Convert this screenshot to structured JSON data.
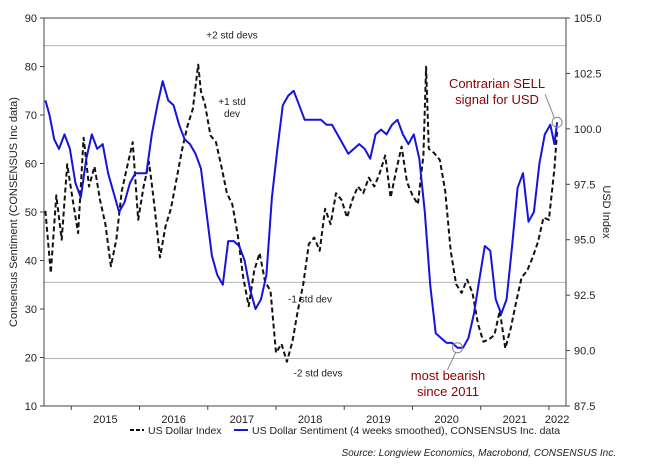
{
  "chart_data": {
    "type": "line",
    "x_tick_labels": [
      "2015",
      "2016",
      "2017",
      "2018",
      "2019",
      "2020",
      "2021",
      "2022"
    ],
    "x_range": [
      2014.6,
      2022.25
    ],
    "left_axis": {
      "label": "Consensus Sentiment (CONSENSUS Inc data)",
      "range": [
        10,
        90
      ],
      "ticks": [
        10,
        20,
        30,
        40,
        50,
        60,
        70,
        80,
        90
      ]
    },
    "right_axis": {
      "label": "USD Index",
      "range": [
        87.5,
        105.0
      ],
      "ticks": [
        "87.5",
        "90.0",
        "92.5",
        "95.0",
        "97.5",
        "100.0",
        "102.5",
        "105.0"
      ]
    },
    "reference_lines": [
      {
        "label": "+2 std devs",
        "value": 84.3
      },
      {
        "label": "-1 std dev",
        "value": 35.5
      },
      {
        "label": "-2 std devs",
        "value": 19.8
      }
    ],
    "inline_labels": [
      {
        "text": "+1 std",
        "text2": "dev"
      }
    ],
    "annotations": [
      {
        "text": "Contrarian SELL",
        "text2": "signal for USD",
        "color": "#8b0000"
      },
      {
        "text": "most bearish",
        "text2": "since 2011",
        "color": "#8b0000"
      }
    ],
    "series": [
      {
        "name": "US Dollar Index",
        "axis": "right",
        "color": "#111111",
        "style": "dashed",
        "x": [
          2014.62,
          2014.7,
          2014.78,
          2014.86,
          2014.94,
          2015.02,
          2015.1,
          2015.18,
          2015.26,
          2015.34,
          2015.42,
          2015.5,
          2015.58,
          2015.66,
          2015.74,
          2015.82,
          2015.9,
          2015.98,
          2016.06,
          2016.14,
          2016.22,
          2016.3,
          2016.38,
          2016.46,
          2016.54,
          2016.62,
          2016.7,
          2016.78,
          2016.86,
          2016.9,
          2016.96,
          2017.04,
          2017.12,
          2017.2,
          2017.28,
          2017.36,
          2017.44,
          2017.52,
          2017.6,
          2017.68,
          2017.76,
          2017.84,
          2017.92,
          2018.0,
          2018.08,
          2018.16,
          2018.24,
          2018.32,
          2018.4,
          2018.48,
          2018.56,
          2018.64,
          2018.72,
          2018.8,
          2018.88,
          2018.96,
          2019.04,
          2019.12,
          2019.2,
          2019.28,
          2019.36,
          2019.44,
          2019.52,
          2019.6,
          2019.68,
          2019.76,
          2019.84,
          2019.92,
          2020.0,
          2020.08,
          2020.16,
          2020.2,
          2020.24,
          2020.32,
          2020.4,
          2020.48,
          2020.56,
          2020.64,
          2020.72,
          2020.8,
          2020.88,
          2020.96,
          2021.04,
          2021.12,
          2021.2,
          2021.28,
          2021.36,
          2021.44,
          2021.52,
          2021.6,
          2021.68,
          2021.76,
          2021.84,
          2021.92,
          2022.0,
          2022.08,
          2022.12
        ],
        "values": [
          96.3,
          93.5,
          97.0,
          95.0,
          98.4,
          96.8,
          95.3,
          99.6,
          97.4,
          98.3,
          96.8,
          95.7,
          93.8,
          95.0,
          97.2,
          98.3,
          99.4,
          95.9,
          97.4,
          98.5,
          96.5,
          94.2,
          95.6,
          96.4,
          97.7,
          99.0,
          100.1,
          100.9,
          102.9,
          101.7,
          101.1,
          99.7,
          99.4,
          98.3,
          97.1,
          96.6,
          95.2,
          93.3,
          92.0,
          93.6,
          94.4,
          93.1,
          92.7,
          89.9,
          90.3,
          89.5,
          90.4,
          91.8,
          93.0,
          94.8,
          95.1,
          94.5,
          96.4,
          95.7,
          97.1,
          96.8,
          96.0,
          96.8,
          97.4,
          97.1,
          97.8,
          97.4,
          98.0,
          98.8,
          96.9,
          98.1,
          99.2,
          97.6,
          97.0,
          96.6,
          98.8,
          102.8,
          99.1,
          98.9,
          98.6,
          97.2,
          94.5,
          93.0,
          92.6,
          93.2,
          92.6,
          91.2,
          90.4,
          90.5,
          90.7,
          91.8,
          90.1,
          91.0,
          92.2,
          93.3,
          93.6,
          94.2,
          94.9,
          96.0,
          95.9,
          98.2,
          99.9
        ]
      },
      {
        "name": "US Dollar Sentiment (4 weeks smoothed), CONSENSUS Inc. data",
        "axis": "left",
        "color": "#1414dc",
        "style": "solid",
        "x": [
          2014.62,
          2014.68,
          2014.75,
          2014.82,
          2014.9,
          2014.98,
          2015.06,
          2015.14,
          2015.22,
          2015.3,
          2015.38,
          2015.46,
          2015.54,
          2015.62,
          2015.7,
          2015.78,
          2015.86,
          2015.94,
          2016.02,
          2016.1,
          2016.18,
          2016.26,
          2016.34,
          2016.42,
          2016.5,
          2016.58,
          2016.66,
          2016.74,
          2016.82,
          2016.9,
          2016.98,
          2017.06,
          2017.14,
          2017.22,
          2017.3,
          2017.38,
          2017.46,
          2017.54,
          2017.62,
          2017.7,
          2017.78,
          2017.86,
          2017.94,
          2018.02,
          2018.1,
          2018.18,
          2018.26,
          2018.34,
          2018.42,
          2018.5,
          2018.58,
          2018.66,
          2018.74,
          2018.82,
          2018.9,
          2018.98,
          2019.06,
          2019.14,
          2019.22,
          2019.3,
          2019.38,
          2019.46,
          2019.54,
          2019.62,
          2019.7,
          2019.78,
          2019.86,
          2019.94,
          2020.02,
          2020.1,
          2020.18,
          2020.26,
          2020.34,
          2020.42,
          2020.5,
          2020.58,
          2020.66,
          2020.74,
          2020.82,
          2020.9,
          2020.98,
          2021.06,
          2021.14,
          2021.22,
          2021.3,
          2021.38,
          2021.46,
          2021.54,
          2021.62,
          2021.7,
          2021.78,
          2021.86,
          2021.94,
          2022.02,
          2022.08,
          2022.12
        ],
        "values": [
          73,
          70,
          65,
          63,
          66,
          63,
          56,
          53,
          61,
          66,
          63,
          64,
          58,
          54,
          50,
          52,
          56,
          58,
          58,
          58,
          66,
          72,
          77,
          73,
          72,
          68,
          65,
          64,
          62,
          59,
          50,
          41,
          37,
          35,
          44,
          44,
          43,
          40,
          34,
          30,
          32,
          37,
          53,
          63,
          72,
          74,
          75,
          72,
          69,
          69,
          69,
          69,
          68,
          68,
          66,
          64,
          62,
          63,
          64,
          63,
          61,
          66,
          67,
          66,
          68,
          69,
          66,
          64,
          66,
          61,
          50,
          35,
          25,
          24,
          23,
          23,
          22,
          22,
          24,
          29,
          36,
          43,
          42,
          32,
          29,
          32,
          43,
          55,
          58,
          48,
          50,
          60,
          66,
          68,
          64,
          68.5
        ]
      }
    ],
    "legend": [
      {
        "label": "US Dollar Index",
        "style": "dashed",
        "color": "#111111"
      },
      {
        "label": "US Dollar Sentiment (4 weeks smoothed), CONSENSUS Inc. data",
        "style": "solid",
        "color": "#1414dc"
      }
    ],
    "source": "Source: Longview Economics, Macrobond, CONSENSUS Inc.",
    "grid": false,
    "legend_position": "bottom"
  }
}
